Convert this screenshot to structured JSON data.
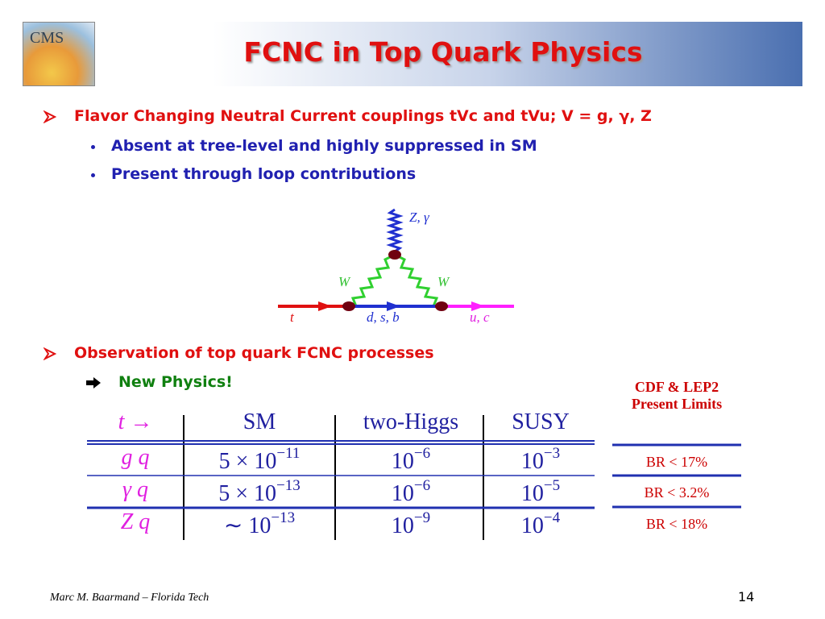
{
  "header": {
    "logo": "CMS",
    "title": "FCNC in Top Quark Physics"
  },
  "bullets": [
    {
      "text": "Flavor Changing Neutral Current couplings tVc and tVu; V = g, γ, Z",
      "sub": [
        "Absent at tree-level and highly suppressed in SM",
        "Present through loop contributions"
      ]
    },
    {
      "text": "Observation of top quark FCNC processes",
      "sub": [
        "New Physics!"
      ]
    }
  ],
  "diagram": {
    "labels": [
      "Z, γ",
      "W",
      "W",
      "t",
      "d, s, b",
      "u, c"
    ]
  },
  "table": {
    "header": [
      "t →",
      "SM",
      "two-Higgs",
      "SUSY"
    ],
    "rows": [
      [
        "g q",
        [
          "5 × 10",
          "−11"
        ],
        [
          "10",
          "−6"
        ],
        [
          "10",
          "−3"
        ]
      ],
      [
        "γ q",
        [
          "5 × 10",
          "−13"
        ],
        [
          "10",
          "−6"
        ],
        [
          "10",
          "−5"
        ]
      ],
      [
        "Z q",
        [
          "∼ 10",
          "−13"
        ],
        [
          "10",
          "−9"
        ],
        [
          "10",
          "−4"
        ]
      ]
    ]
  },
  "limits": {
    "header": "CDF & LEP2 Present Limits",
    "rows": [
      "BR < 17%",
      "BR < 3.2%",
      "BR < 18%"
    ]
  },
  "footer": {
    "author": "Marc M. Baarmand – Florida Tech",
    "page": "14"
  }
}
